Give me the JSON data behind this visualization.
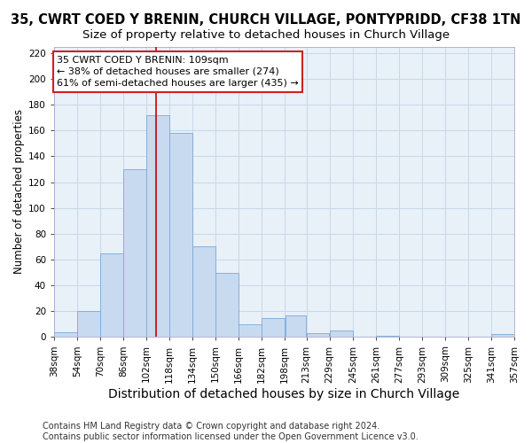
{
  "title": "35, CWRT COED Y BRENIN, CHURCH VILLAGE, PONTYPRIDD, CF38 1TN",
  "subtitle": "Size of property relative to detached houses in Church Village",
  "xlabel": "Distribution of detached houses by size in Church Village",
  "ylabel": "Number of detached properties",
  "bar_color": "#c8daf0",
  "bar_edge_color": "#7aaad4",
  "bins": [
    "38sqm",
    "54sqm",
    "70sqm",
    "86sqm",
    "102sqm",
    "118sqm",
    "134sqm",
    "150sqm",
    "166sqm",
    "182sqm",
    "198sqm",
    "213sqm",
    "229sqm",
    "245sqm",
    "261sqm",
    "277sqm",
    "293sqm",
    "309sqm",
    "325sqm",
    "341sqm",
    "357sqm"
  ],
  "bin_edges": [
    38,
    54,
    70,
    86,
    102,
    118,
    134,
    150,
    166,
    182,
    198,
    213,
    229,
    245,
    261,
    277,
    293,
    309,
    325,
    341,
    357
  ],
  "values": [
    4,
    20,
    65,
    130,
    172,
    158,
    70,
    50,
    10,
    15,
    17,
    3,
    5,
    0,
    1,
    0,
    0,
    0,
    0,
    2
  ],
  "ylim": [
    0,
    225
  ],
  "yticks": [
    0,
    20,
    40,
    60,
    80,
    100,
    120,
    140,
    160,
    180,
    200,
    220
  ],
  "vline_x": 109,
  "vline_color": "#cc0000",
  "annotation_line1": "35 CWRT COED Y BRENIN: 109sqm",
  "annotation_line2": "← 38% of detached houses are smaller (274)",
  "annotation_line3": "61% of semi-detached houses are larger (435) →",
  "footer_line1": "Contains HM Land Registry data © Crown copyright and database right 2024.",
  "footer_line2": "Contains public sector information licensed under the Open Government Licence v3.0.",
  "bg_color": "#ffffff",
  "plot_bg_color": "#e8f0f8",
  "grid_color": "#c8d8e8",
  "title_fontsize": 10.5,
  "subtitle_fontsize": 9.5,
  "xlabel_fontsize": 10,
  "ylabel_fontsize": 8.5,
  "tick_fontsize": 7.5,
  "footer_fontsize": 7,
  "ann_fontsize": 8
}
